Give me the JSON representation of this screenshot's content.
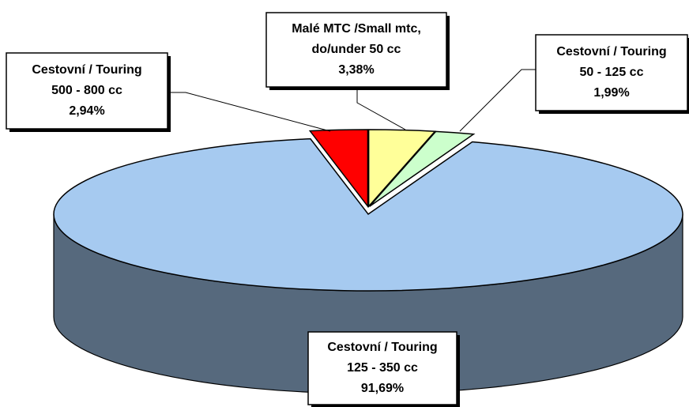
{
  "chart_data": {
    "type": "pie3d",
    "categories": [
      [
        "Cestovní / Touring",
        "500 - 800 cc"
      ],
      [
        "Malé MTC /Small mtc,",
        "do/under 50 cc"
      ],
      [
        "Cestovní / Touring",
        "50 - 125 cc"
      ],
      [
        "Cestovní / Touring",
        "125 - 350 cc"
      ]
    ],
    "values": [
      2.94,
      3.38,
      1.99,
      91.69
    ],
    "value_labels": [
      "2,94%",
      "3,38%",
      "1,99%",
      "91,69%"
    ],
    "colors": [
      "#ff0000",
      "#ffff99",
      "#ccffcc",
      "#a6caf0"
    ]
  }
}
